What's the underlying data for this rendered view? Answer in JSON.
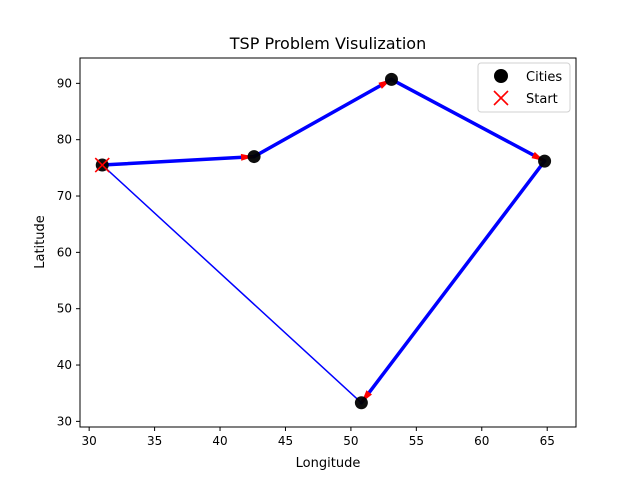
{
  "chart_data": {
    "type": "scatter",
    "title": "TSP Problem Visulization",
    "xlabel": "Longitude",
    "ylabel": "Latitude",
    "xlim": [
      29.3,
      67.2
    ],
    "ylim": [
      29.0,
      94.5
    ],
    "xticks": [
      30,
      35,
      40,
      45,
      50,
      55,
      60,
      65
    ],
    "yticks": [
      30,
      40,
      50,
      60,
      70,
      80,
      90
    ],
    "grid": false,
    "legend_position": "top-right",
    "cities": [
      {
        "x": 31.0,
        "y": 75.5
      },
      {
        "x": 42.6,
        "y": 77.0
      },
      {
        "x": 53.1,
        "y": 90.7
      },
      {
        "x": 64.8,
        "y": 76.2
      },
      {
        "x": 50.8,
        "y": 33.3
      }
    ],
    "start": {
      "x": 31.0,
      "y": 75.5
    },
    "route_order": [
      0,
      1,
      2,
      3,
      4
    ],
    "return_to_start": true,
    "series": [
      {
        "name": "Cities",
        "marker": "circle",
        "color": "#000000"
      },
      {
        "name": "Start",
        "marker": "x",
        "color": "#ff0000"
      }
    ],
    "route_color": "#0000ff",
    "arrow_color": "#ff0000"
  }
}
